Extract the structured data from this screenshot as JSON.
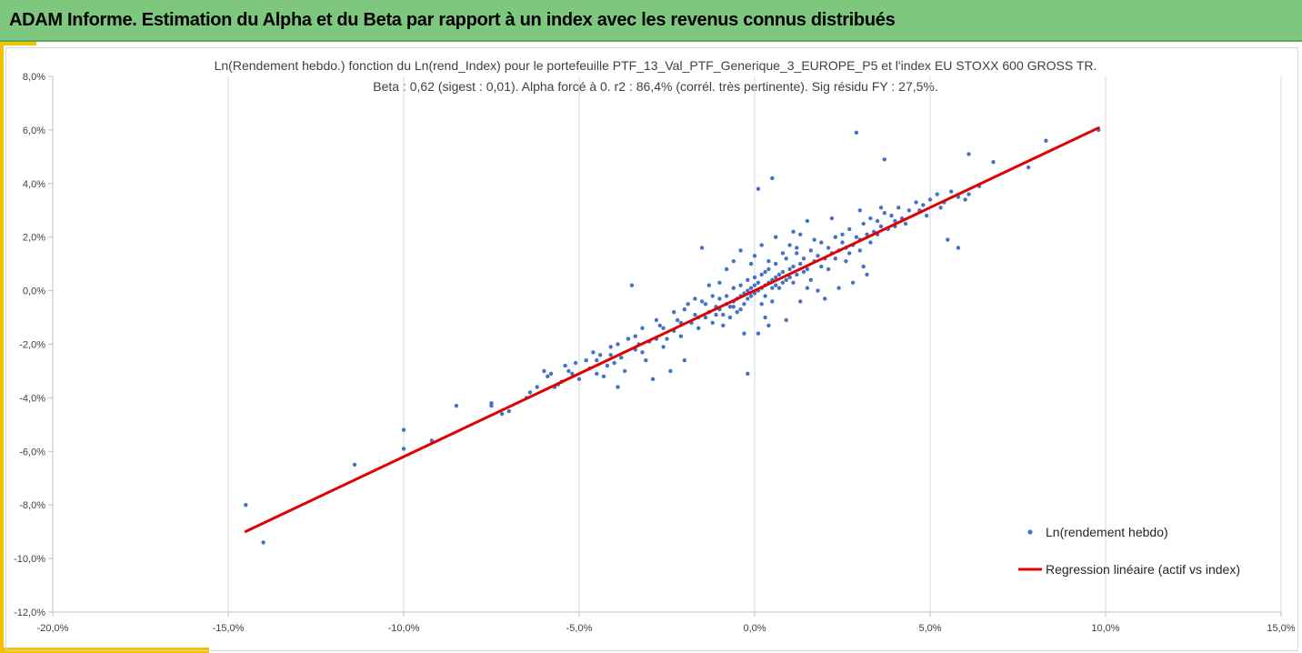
{
  "header": {
    "title": "ADAM Informe. Estimation du Alpha et du Beta par rapport à un index avec les revenus connus distribués"
  },
  "colors": {
    "header_bg": "#7ec77e",
    "accent": "#f2c100",
    "points": "#4472c4",
    "regression": "#e00000"
  },
  "chart_data": {
    "type": "scatter",
    "title": "Ln(Rendement hebdo.) fonction du Ln(rend_Index) pour le portefeuille PTF_13_Val_PTF_Generique_3_EUROPE_P5 et l'index EU STOXX 600 GROSS TR.",
    "subtitle": "Beta : 0,62 (sigest : 0,01).  Alpha forcé à 0. r2 : 86,4% (corrél. très pertinente). Sig résidu FY : 27,5%.",
    "xlim": [
      -0.2,
      0.15
    ],
    "ylim": [
      -0.12,
      0.08
    ],
    "x_ticks": [
      -0.2,
      -0.15,
      -0.1,
      -0.05,
      0.0,
      0.05,
      0.1,
      0.15
    ],
    "y_ticks": [
      -0.12,
      -0.1,
      -0.08,
      -0.06,
      -0.04,
      -0.02,
      0.0,
      0.02,
      0.04,
      0.06,
      0.08
    ],
    "x_tick_labels": [
      "-20,0%",
      "-15,0%",
      "-10,0%",
      "-5,0%",
      "0,0%",
      "5,0%",
      "10,0%",
      "15,0%"
    ],
    "y_tick_labels": [
      "-12,0%",
      "-10,0%",
      "-8,0%",
      "-6,0%",
      "-4,0%",
      "-2,0%",
      "0,0%",
      "2,0%",
      "4,0%",
      "6,0%",
      "8,0%"
    ],
    "grid": "vertical",
    "legend_position": "bottom-right",
    "series": [
      {
        "name": "Ln(rendement hebdo)",
        "type": "scatter",
        "points": [
          [
            -0.145,
            -0.08
          ],
          [
            -0.14,
            -0.094
          ],
          [
            -0.114,
            -0.065
          ],
          [
            -0.1,
            -0.052
          ],
          [
            -0.1,
            -0.059
          ],
          [
            -0.092,
            -0.056
          ],
          [
            -0.085,
            -0.043
          ],
          [
            -0.075,
            -0.042
          ],
          [
            -0.075,
            -0.043
          ],
          [
            -0.065,
            -0.04
          ],
          [
            -0.062,
            -0.036
          ],
          [
            -0.06,
            -0.03
          ],
          [
            -0.059,
            -0.032
          ],
          [
            -0.056,
            -0.035
          ],
          [
            -0.055,
            -0.034
          ],
          [
            -0.052,
            -0.031
          ],
          [
            -0.05,
            -0.033
          ],
          [
            -0.047,
            -0.029
          ],
          [
            -0.045,
            -0.026
          ],
          [
            -0.045,
            -0.031
          ],
          [
            -0.043,
            -0.032
          ],
          [
            -0.041,
            -0.024
          ],
          [
            -0.04,
            -0.027
          ],
          [
            -0.039,
            -0.036
          ],
          [
            -0.037,
            -0.03
          ],
          [
            -0.035,
            0.002
          ],
          [
            -0.033,
            -0.02
          ],
          [
            -0.032,
            -0.023
          ],
          [
            -0.03,
            -0.019
          ],
          [
            -0.029,
            -0.033
          ],
          [
            -0.028,
            -0.018
          ],
          [
            -0.026,
            -0.021
          ],
          [
            -0.024,
            -0.03
          ],
          [
            -0.023,
            -0.015
          ],
          [
            -0.022,
            -0.011
          ],
          [
            -0.021,
            -0.017
          ],
          [
            -0.02,
            -0.026
          ],
          [
            -0.018,
            -0.012
          ],
          [
            -0.017,
            -0.009
          ],
          [
            -0.016,
            -0.014
          ],
          [
            -0.015,
            -0.004
          ],
          [
            -0.015,
            0.016
          ],
          [
            -0.014,
            -0.01
          ],
          [
            -0.013,
            -0.008
          ],
          [
            -0.012,
            -0.012
          ],
          [
            -0.011,
            -0.006
          ],
          [
            -0.01,
            -0.007
          ],
          [
            -0.01,
            -0.003
          ],
          [
            -0.009,
            -0.009
          ],
          [
            -0.008,
            -0.005
          ],
          [
            -0.008,
            -0.002
          ],
          [
            -0.007,
            -0.006
          ],
          [
            -0.006,
            -0.004
          ],
          [
            -0.006,
            0.001
          ],
          [
            -0.005,
            -0.003
          ],
          [
            -0.005,
            -0.008
          ],
          [
            -0.004,
            -0.002
          ],
          [
            -0.004,
            0.002
          ],
          [
            -0.003,
            -0.001
          ],
          [
            -0.003,
            -0.005
          ],
          [
            -0.002,
            0.0
          ],
          [
            -0.002,
            0.004
          ],
          [
            -0.002,
            -0.003
          ],
          [
            -0.001,
            0.001
          ],
          [
            -0.001,
            -0.002
          ],
          [
            0.0,
            0.002
          ],
          [
            0.0,
            -0.001
          ],
          [
            0.0,
            0.005
          ],
          [
            0.001,
            0.003
          ],
          [
            0.001,
            0.0
          ],
          [
            0.002,
            0.001
          ],
          [
            0.002,
            0.006
          ],
          [
            0.003,
            0.002
          ],
          [
            0.003,
            -0.002
          ],
          [
            0.004,
            0.003
          ],
          [
            0.004,
            0.008
          ],
          [
            0.005,
            0.004
          ],
          [
            0.005,
            0.001
          ],
          [
            0.006,
            0.005
          ],
          [
            0.006,
            0.01
          ],
          [
            0.007,
            0.006
          ],
          [
            0.008,
            0.003
          ],
          [
            0.008,
            0.007
          ],
          [
            0.009,
            0.012
          ],
          [
            0.01,
            0.008
          ],
          [
            0.01,
            0.005
          ],
          [
            0.011,
            0.009
          ],
          [
            0.012,
            0.014
          ],
          [
            0.012,
            0.006
          ],
          [
            0.013,
            0.01
          ],
          [
            0.014,
            0.012
          ],
          [
            0.015,
            0.008
          ],
          [
            0.016,
            0.015
          ],
          [
            0.017,
            0.011
          ],
          [
            0.018,
            0.013
          ],
          [
            0.019,
            0.018
          ],
          [
            0.02,
            0.012
          ],
          [
            0.021,
            0.016
          ],
          [
            0.022,
            0.014
          ],
          [
            0.023,
            0.02
          ],
          [
            0.024,
            0.015
          ],
          [
            0.025,
            0.018
          ],
          [
            0.026,
            0.016
          ],
          [
            0.027,
            0.023
          ],
          [
            0.028,
            0.017
          ],
          [
            0.029,
            0.02
          ],
          [
            0.03,
            0.019
          ],
          [
            0.031,
            0.025
          ],
          [
            0.032,
            0.021
          ],
          [
            0.033,
            0.027
          ],
          [
            0.034,
            0.022
          ],
          [
            0.035,
            0.026
          ],
          [
            0.036,
            0.024
          ],
          [
            0.037,
            0.029
          ],
          [
            0.038,
            0.023
          ],
          [
            0.039,
            0.028
          ],
          [
            0.04,
            0.026
          ],
          [
            0.041,
            0.031
          ],
          [
            0.042,
            0.027
          ],
          [
            0.044,
            0.03
          ],
          [
            0.046,
            0.033
          ],
          [
            0.048,
            0.032
          ],
          [
            0.05,
            0.034
          ],
          [
            0.052,
            0.036
          ],
          [
            0.054,
            0.033
          ],
          [
            0.056,
            0.037
          ],
          [
            0.058,
            0.035
          ],
          [
            0.061,
            0.036
          ],
          [
            0.064,
            0.039
          ],
          [
            -0.004,
            0.015
          ],
          [
            -0.003,
            -0.016
          ],
          [
            0.004,
            -0.013
          ],
          [
            0.006,
            0.02
          ],
          [
            0.009,
            -0.011
          ],
          [
            0.011,
            0.022
          ],
          [
            0.013,
            -0.004
          ],
          [
            0.015,
            0.026
          ],
          [
            0.018,
            0.0
          ],
          [
            0.02,
            -0.003
          ],
          [
            0.022,
            0.027
          ],
          [
            0.024,
            0.001
          ],
          [
            0.026,
            0.011
          ],
          [
            0.028,
            0.003
          ],
          [
            0.03,
            0.03
          ],
          [
            0.031,
            0.009
          ],
          [
            0.032,
            0.006
          ],
          [
            0.029,
            0.059
          ],
          [
            0.037,
            0.049
          ],
          [
            0.001,
            0.038
          ],
          [
            0.005,
            0.042
          ],
          [
            0.055,
            0.019
          ],
          [
            0.058,
            0.016
          ],
          [
            0.061,
            0.051
          ],
          [
            0.068,
            0.048
          ],
          [
            0.078,
            0.046
          ],
          [
            0.083,
            0.056
          ],
          [
            0.098,
            0.06
          ],
          [
            -0.002,
            -0.031
          ],
          [
            0.001,
            -0.016
          ],
          [
            0.003,
            -0.01
          ],
          [
            -0.009,
            -0.013
          ],
          [
            -0.012,
            -0.002
          ],
          [
            -0.019,
            -0.005
          ],
          [
            -0.025,
            -0.018
          ],
          [
            -0.027,
            -0.013
          ],
          [
            -0.031,
            -0.026
          ],
          [
            -0.034,
            -0.022
          ],
          [
            -0.038,
            -0.025
          ],
          [
            -0.044,
            -0.024
          ],
          [
            -0.048,
            -0.026
          ],
          [
            -0.053,
            -0.03
          ],
          [
            -0.057,
            -0.036
          ],
          [
            -0.051,
            -0.027
          ],
          [
            -0.046,
            -0.023
          ],
          [
            -0.042,
            -0.028
          ],
          [
            -0.036,
            -0.018
          ],
          [
            -0.026,
            -0.014
          ],
          [
            -0.021,
            -0.012
          ],
          [
            -0.016,
            -0.01
          ],
          [
            -0.014,
            -0.005
          ],
          [
            -0.011,
            -0.009
          ],
          [
            -0.007,
            -0.01
          ],
          [
            -0.006,
            -0.006
          ],
          [
            -0.004,
            -0.007
          ],
          [
            0.002,
            -0.005
          ],
          [
            0.003,
            0.007
          ],
          [
            0.005,
            -0.004
          ],
          [
            0.007,
            0.001
          ],
          [
            0.009,
            0.004
          ],
          [
            0.011,
            0.003
          ],
          [
            0.012,
            0.016
          ],
          [
            0.014,
            0.007
          ],
          [
            0.016,
            0.004
          ],
          [
            0.017,
            0.019
          ],
          [
            0.019,
            0.009
          ],
          [
            0.021,
            0.008
          ],
          [
            0.023,
            0.012
          ],
          [
            0.025,
            0.021
          ],
          [
            0.027,
            0.014
          ],
          [
            0.03,
            0.015
          ],
          [
            0.033,
            0.018
          ],
          [
            0.035,
            0.021
          ],
          [
            0.036,
            0.031
          ],
          [
            0.04,
            0.024
          ],
          [
            0.043,
            0.025
          ],
          [
            0.047,
            0.03
          ],
          [
            0.049,
            0.028
          ],
          [
            0.053,
            0.031
          ],
          [
            0.06,
            0.034
          ],
          [
            -0.001,
            0.01
          ],
          [
            0.0,
            0.013
          ],
          [
            0.002,
            0.017
          ],
          [
            0.004,
            0.011
          ],
          [
            0.006,
            0.002
          ],
          [
            0.008,
            0.014
          ],
          [
            0.01,
            0.017
          ],
          [
            0.013,
            0.021
          ],
          [
            0.015,
            0.001
          ],
          [
            -0.008,
            0.008
          ],
          [
            -0.006,
            0.011
          ],
          [
            -0.01,
            0.003
          ],
          [
            -0.013,
            0.002
          ],
          [
            -0.017,
            -0.003
          ],
          [
            -0.02,
            -0.007
          ],
          [
            -0.023,
            -0.008
          ],
          [
            -0.028,
            -0.011
          ],
          [
            -0.032,
            -0.014
          ],
          [
            -0.034,
            -0.017
          ],
          [
            -0.039,
            -0.02
          ],
          [
            -0.041,
            -0.021
          ],
          [
            -0.054,
            -0.028
          ],
          [
            -0.058,
            -0.031
          ],
          [
            -0.064,
            -0.038
          ],
          [
            -0.07,
            -0.045
          ],
          [
            -0.072,
            -0.046
          ]
        ]
      },
      {
        "name": "Regression linéaire (actif vs index)",
        "type": "line",
        "points": [
          [
            -0.145,
            -0.0899
          ],
          [
            0.098,
            0.0608
          ]
        ]
      }
    ]
  }
}
